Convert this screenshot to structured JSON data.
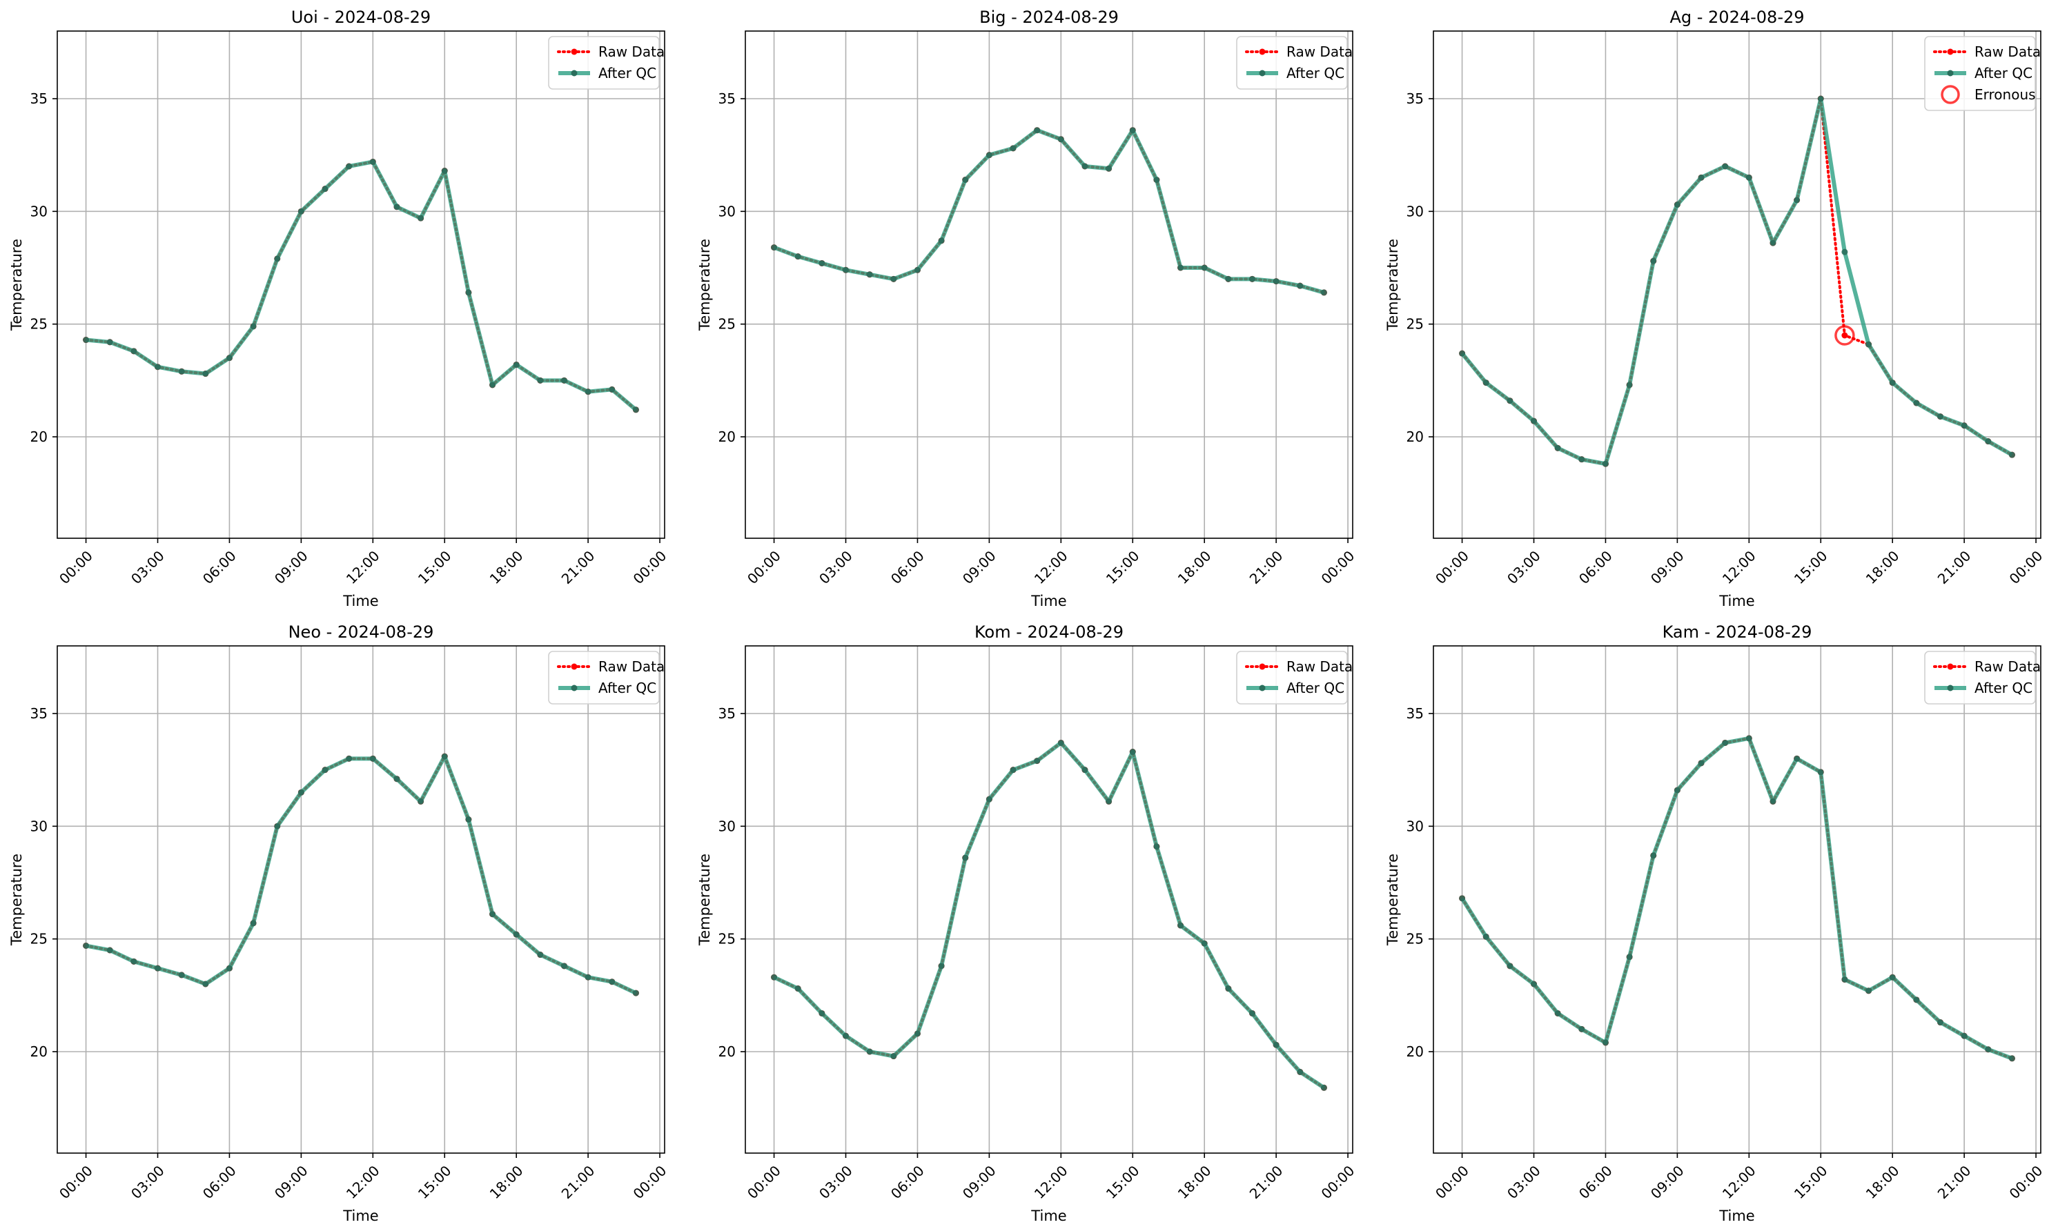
{
  "chart_data": [
    {
      "type": "line",
      "title": "Uoi - 2024-08-29",
      "xlabel": "Time",
      "ylabel": "Temperature",
      "x": [
        "00:00",
        "01:00",
        "02:00",
        "03:00",
        "04:00",
        "05:00",
        "06:00",
        "07:00",
        "08:00",
        "09:00",
        "10:00",
        "11:00",
        "12:00",
        "13:00",
        "14:00",
        "15:00",
        "16:00",
        "17:00",
        "18:00",
        "19:00",
        "20:00",
        "21:00",
        "22:00",
        "23:00"
      ],
      "xticks": [
        "00:00",
        "03:00",
        "06:00",
        "09:00",
        "12:00",
        "15:00",
        "18:00",
        "21:00",
        "00:00"
      ],
      "yticks": [
        20,
        25,
        30,
        35
      ],
      "ylim": [
        15.5,
        38
      ],
      "xlim_hours": [
        -1.2,
        24.2
      ],
      "grid": true,
      "legend_position": "top-right",
      "series": [
        {
          "name": "Raw Data",
          "color": "#ff0000",
          "style": "dotted",
          "values": [
            24.3,
            24.2,
            23.8,
            23.1,
            22.9,
            22.8,
            23.5,
            24.9,
            27.9,
            30.0,
            31.0,
            32.0,
            32.2,
            30.2,
            29.7,
            31.8,
            26.4,
            22.3,
            23.2,
            22.5,
            22.5,
            22.0,
            22.1,
            21.2
          ]
        },
        {
          "name": "After QC",
          "color": "#2b9f82",
          "style": "solid",
          "values": [
            24.3,
            24.2,
            23.8,
            23.1,
            22.9,
            22.8,
            23.5,
            24.9,
            27.9,
            30.0,
            31.0,
            32.0,
            32.2,
            30.2,
            29.7,
            31.8,
            26.4,
            22.3,
            23.2,
            22.5,
            22.5,
            22.0,
            22.1,
            21.2
          ]
        }
      ]
    },
    {
      "type": "line",
      "title": "Big - 2024-08-29",
      "xlabel": "Time",
      "ylabel": "Temperature",
      "x": [
        "00:00",
        "01:00",
        "02:00",
        "03:00",
        "04:00",
        "05:00",
        "06:00",
        "07:00",
        "08:00",
        "09:00",
        "10:00",
        "11:00",
        "12:00",
        "13:00",
        "14:00",
        "15:00",
        "16:00",
        "17:00",
        "18:00",
        "19:00",
        "20:00",
        "21:00",
        "22:00",
        "23:00"
      ],
      "xticks": [
        "00:00",
        "03:00",
        "06:00",
        "09:00",
        "12:00",
        "15:00",
        "18:00",
        "21:00",
        "00:00"
      ],
      "yticks": [
        20,
        25,
        30,
        35
      ],
      "ylim": [
        15.5,
        38
      ],
      "xlim_hours": [
        -1.2,
        24.2
      ],
      "grid": true,
      "legend_position": "top-right",
      "series": [
        {
          "name": "Raw Data",
          "color": "#ff0000",
          "style": "dotted",
          "values": [
            28.4,
            28.0,
            27.7,
            27.4,
            27.2,
            27.0,
            27.4,
            28.7,
            31.4,
            32.5,
            32.8,
            33.6,
            33.2,
            32.0,
            31.9,
            33.6,
            31.4,
            27.5,
            27.5,
            27.0,
            27.0,
            26.9,
            26.7,
            26.4
          ]
        },
        {
          "name": "After QC",
          "color": "#2b9f82",
          "style": "solid",
          "values": [
            28.4,
            28.0,
            27.7,
            27.4,
            27.2,
            27.0,
            27.4,
            28.7,
            31.4,
            32.5,
            32.8,
            33.6,
            33.2,
            32.0,
            31.9,
            33.6,
            31.4,
            27.5,
            27.5,
            27.0,
            27.0,
            26.9,
            26.7,
            26.4
          ]
        }
      ]
    },
    {
      "type": "line",
      "title": "Ag - 2024-08-29",
      "xlabel": "Time",
      "ylabel": "Temperature",
      "x": [
        "00:00",
        "01:00",
        "02:00",
        "03:00",
        "04:00",
        "05:00",
        "06:00",
        "07:00",
        "08:00",
        "09:00",
        "10:00",
        "11:00",
        "12:00",
        "13:00",
        "14:00",
        "15:00",
        "16:00",
        "17:00",
        "18:00",
        "19:00",
        "20:00",
        "21:00",
        "22:00",
        "23:00"
      ],
      "xticks": [
        "00:00",
        "03:00",
        "06:00",
        "09:00",
        "12:00",
        "15:00",
        "18:00",
        "21:00",
        "00:00"
      ],
      "yticks": [
        20,
        25,
        30,
        35
      ],
      "ylim": [
        15.5,
        38
      ],
      "xlim_hours": [
        -1.2,
        24.2
      ],
      "grid": true,
      "legend_position": "top-right",
      "series": [
        {
          "name": "Raw Data",
          "color": "#ff0000",
          "style": "dotted",
          "values": [
            23.7,
            22.4,
            21.6,
            20.7,
            19.5,
            19.0,
            18.8,
            22.3,
            27.8,
            30.3,
            31.5,
            32.0,
            31.5,
            28.6,
            30.5,
            35.0,
            24.5,
            24.1,
            22.4,
            21.5,
            20.9,
            20.5,
            19.8,
            19.2
          ]
        },
        {
          "name": "After QC",
          "color": "#2b9f82",
          "style": "solid",
          "values": [
            23.7,
            22.4,
            21.6,
            20.7,
            19.5,
            19.0,
            18.8,
            22.3,
            27.8,
            30.3,
            31.5,
            32.0,
            31.5,
            28.6,
            30.5,
            35.0,
            28.2,
            24.1,
            22.4,
            21.5,
            20.9,
            20.5,
            19.8,
            19.2
          ]
        },
        {
          "name": "Erronous",
          "color": "#ff0000",
          "style": "marker",
          "points": [
            {
              "x": "16:00",
              "y": 24.5
            }
          ]
        }
      ]
    },
    {
      "type": "line",
      "title": "Neo - 2024-08-29",
      "xlabel": "Time",
      "ylabel": "Temperature",
      "x": [
        "00:00",
        "01:00",
        "02:00",
        "03:00",
        "04:00",
        "05:00",
        "06:00",
        "07:00",
        "08:00",
        "09:00",
        "10:00",
        "11:00",
        "12:00",
        "13:00",
        "14:00",
        "15:00",
        "16:00",
        "17:00",
        "18:00",
        "19:00",
        "20:00",
        "21:00",
        "22:00",
        "23:00"
      ],
      "xticks": [
        "00:00",
        "03:00",
        "06:00",
        "09:00",
        "12:00",
        "15:00",
        "18:00",
        "21:00",
        "00:00"
      ],
      "yticks": [
        20,
        25,
        30,
        35
      ],
      "ylim": [
        15.5,
        38
      ],
      "xlim_hours": [
        -1.2,
        24.2
      ],
      "grid": true,
      "legend_position": "top-right",
      "series": [
        {
          "name": "Raw Data",
          "color": "#ff0000",
          "style": "dotted",
          "values": [
            24.7,
            24.5,
            24.0,
            23.7,
            23.4,
            23.0,
            23.7,
            25.7,
            30.0,
            31.5,
            32.5,
            33.0,
            33.0,
            32.1,
            31.1,
            33.1,
            30.3,
            26.1,
            25.2,
            24.3,
            23.8,
            23.3,
            23.1,
            22.6
          ]
        },
        {
          "name": "After QC",
          "color": "#2b9f82",
          "style": "solid",
          "values": [
            24.7,
            24.5,
            24.0,
            23.7,
            23.4,
            23.0,
            23.7,
            25.7,
            30.0,
            31.5,
            32.5,
            33.0,
            33.0,
            32.1,
            31.1,
            33.1,
            30.3,
            26.1,
            25.2,
            24.3,
            23.8,
            23.3,
            23.1,
            22.6
          ]
        }
      ]
    },
    {
      "type": "line",
      "title": "Kom - 2024-08-29",
      "xlabel": "Time",
      "ylabel": "Temperature",
      "x": [
        "00:00",
        "01:00",
        "02:00",
        "03:00",
        "04:00",
        "05:00",
        "06:00",
        "07:00",
        "08:00",
        "09:00",
        "10:00",
        "11:00",
        "12:00",
        "13:00",
        "14:00",
        "15:00",
        "16:00",
        "17:00",
        "18:00",
        "19:00",
        "20:00",
        "21:00",
        "22:00",
        "23:00"
      ],
      "xticks": [
        "00:00",
        "03:00",
        "06:00",
        "09:00",
        "12:00",
        "15:00",
        "18:00",
        "21:00",
        "00:00"
      ],
      "yticks": [
        20,
        25,
        30,
        35
      ],
      "ylim": [
        15.5,
        38
      ],
      "xlim_hours": [
        -1.2,
        24.2
      ],
      "grid": true,
      "legend_position": "top-right",
      "series": [
        {
          "name": "Raw Data",
          "color": "#ff0000",
          "style": "dotted",
          "values": [
            23.3,
            22.8,
            21.7,
            20.7,
            20.0,
            19.8,
            20.8,
            23.8,
            28.6,
            31.2,
            32.5,
            32.9,
            33.7,
            32.5,
            31.1,
            33.3,
            29.1,
            25.6,
            24.8,
            22.8,
            21.7,
            20.3,
            19.1,
            18.4
          ]
        },
        {
          "name": "After QC",
          "color": "#2b9f82",
          "style": "solid",
          "values": [
            23.3,
            22.8,
            21.7,
            20.7,
            20.0,
            19.8,
            20.8,
            23.8,
            28.6,
            31.2,
            32.5,
            32.9,
            33.7,
            32.5,
            31.1,
            33.3,
            29.1,
            25.6,
            24.8,
            22.8,
            21.7,
            20.3,
            19.1,
            18.4
          ]
        }
      ]
    },
    {
      "type": "line",
      "title": "Kam - 2024-08-29",
      "xlabel": "Time",
      "ylabel": "Temperature",
      "x": [
        "00:00",
        "01:00",
        "02:00",
        "03:00",
        "04:00",
        "05:00",
        "06:00",
        "07:00",
        "08:00",
        "09:00",
        "10:00",
        "11:00",
        "12:00",
        "13:00",
        "14:00",
        "15:00",
        "16:00",
        "17:00",
        "18:00",
        "19:00",
        "20:00",
        "21:00",
        "22:00",
        "23:00"
      ],
      "xticks": [
        "00:00",
        "03:00",
        "06:00",
        "09:00",
        "12:00",
        "15:00",
        "18:00",
        "21:00",
        "00:00"
      ],
      "yticks": [
        20,
        25,
        30,
        35
      ],
      "ylim": [
        15.5,
        38
      ],
      "xlim_hours": [
        -1.2,
        24.2
      ],
      "grid": true,
      "legend_position": "top-right",
      "series": [
        {
          "name": "Raw Data",
          "color": "#ff0000",
          "style": "dotted",
          "values": [
            26.8,
            25.1,
            23.8,
            23.0,
            21.7,
            21.0,
            20.4,
            24.2,
            28.7,
            31.6,
            32.8,
            33.7,
            33.9,
            31.1,
            33.0,
            32.4,
            23.2,
            22.7,
            23.3,
            22.3,
            21.3,
            20.7,
            20.1,
            19.7
          ]
        },
        {
          "name": "After QC",
          "color": "#2b9f82",
          "style": "solid",
          "values": [
            26.8,
            25.1,
            23.8,
            23.0,
            21.7,
            21.0,
            20.4,
            24.2,
            28.7,
            31.6,
            32.8,
            33.7,
            33.9,
            31.1,
            33.0,
            32.4,
            23.2,
            22.7,
            23.3,
            22.3,
            21.3,
            20.7,
            20.1,
            19.7
          ]
        }
      ]
    }
  ]
}
